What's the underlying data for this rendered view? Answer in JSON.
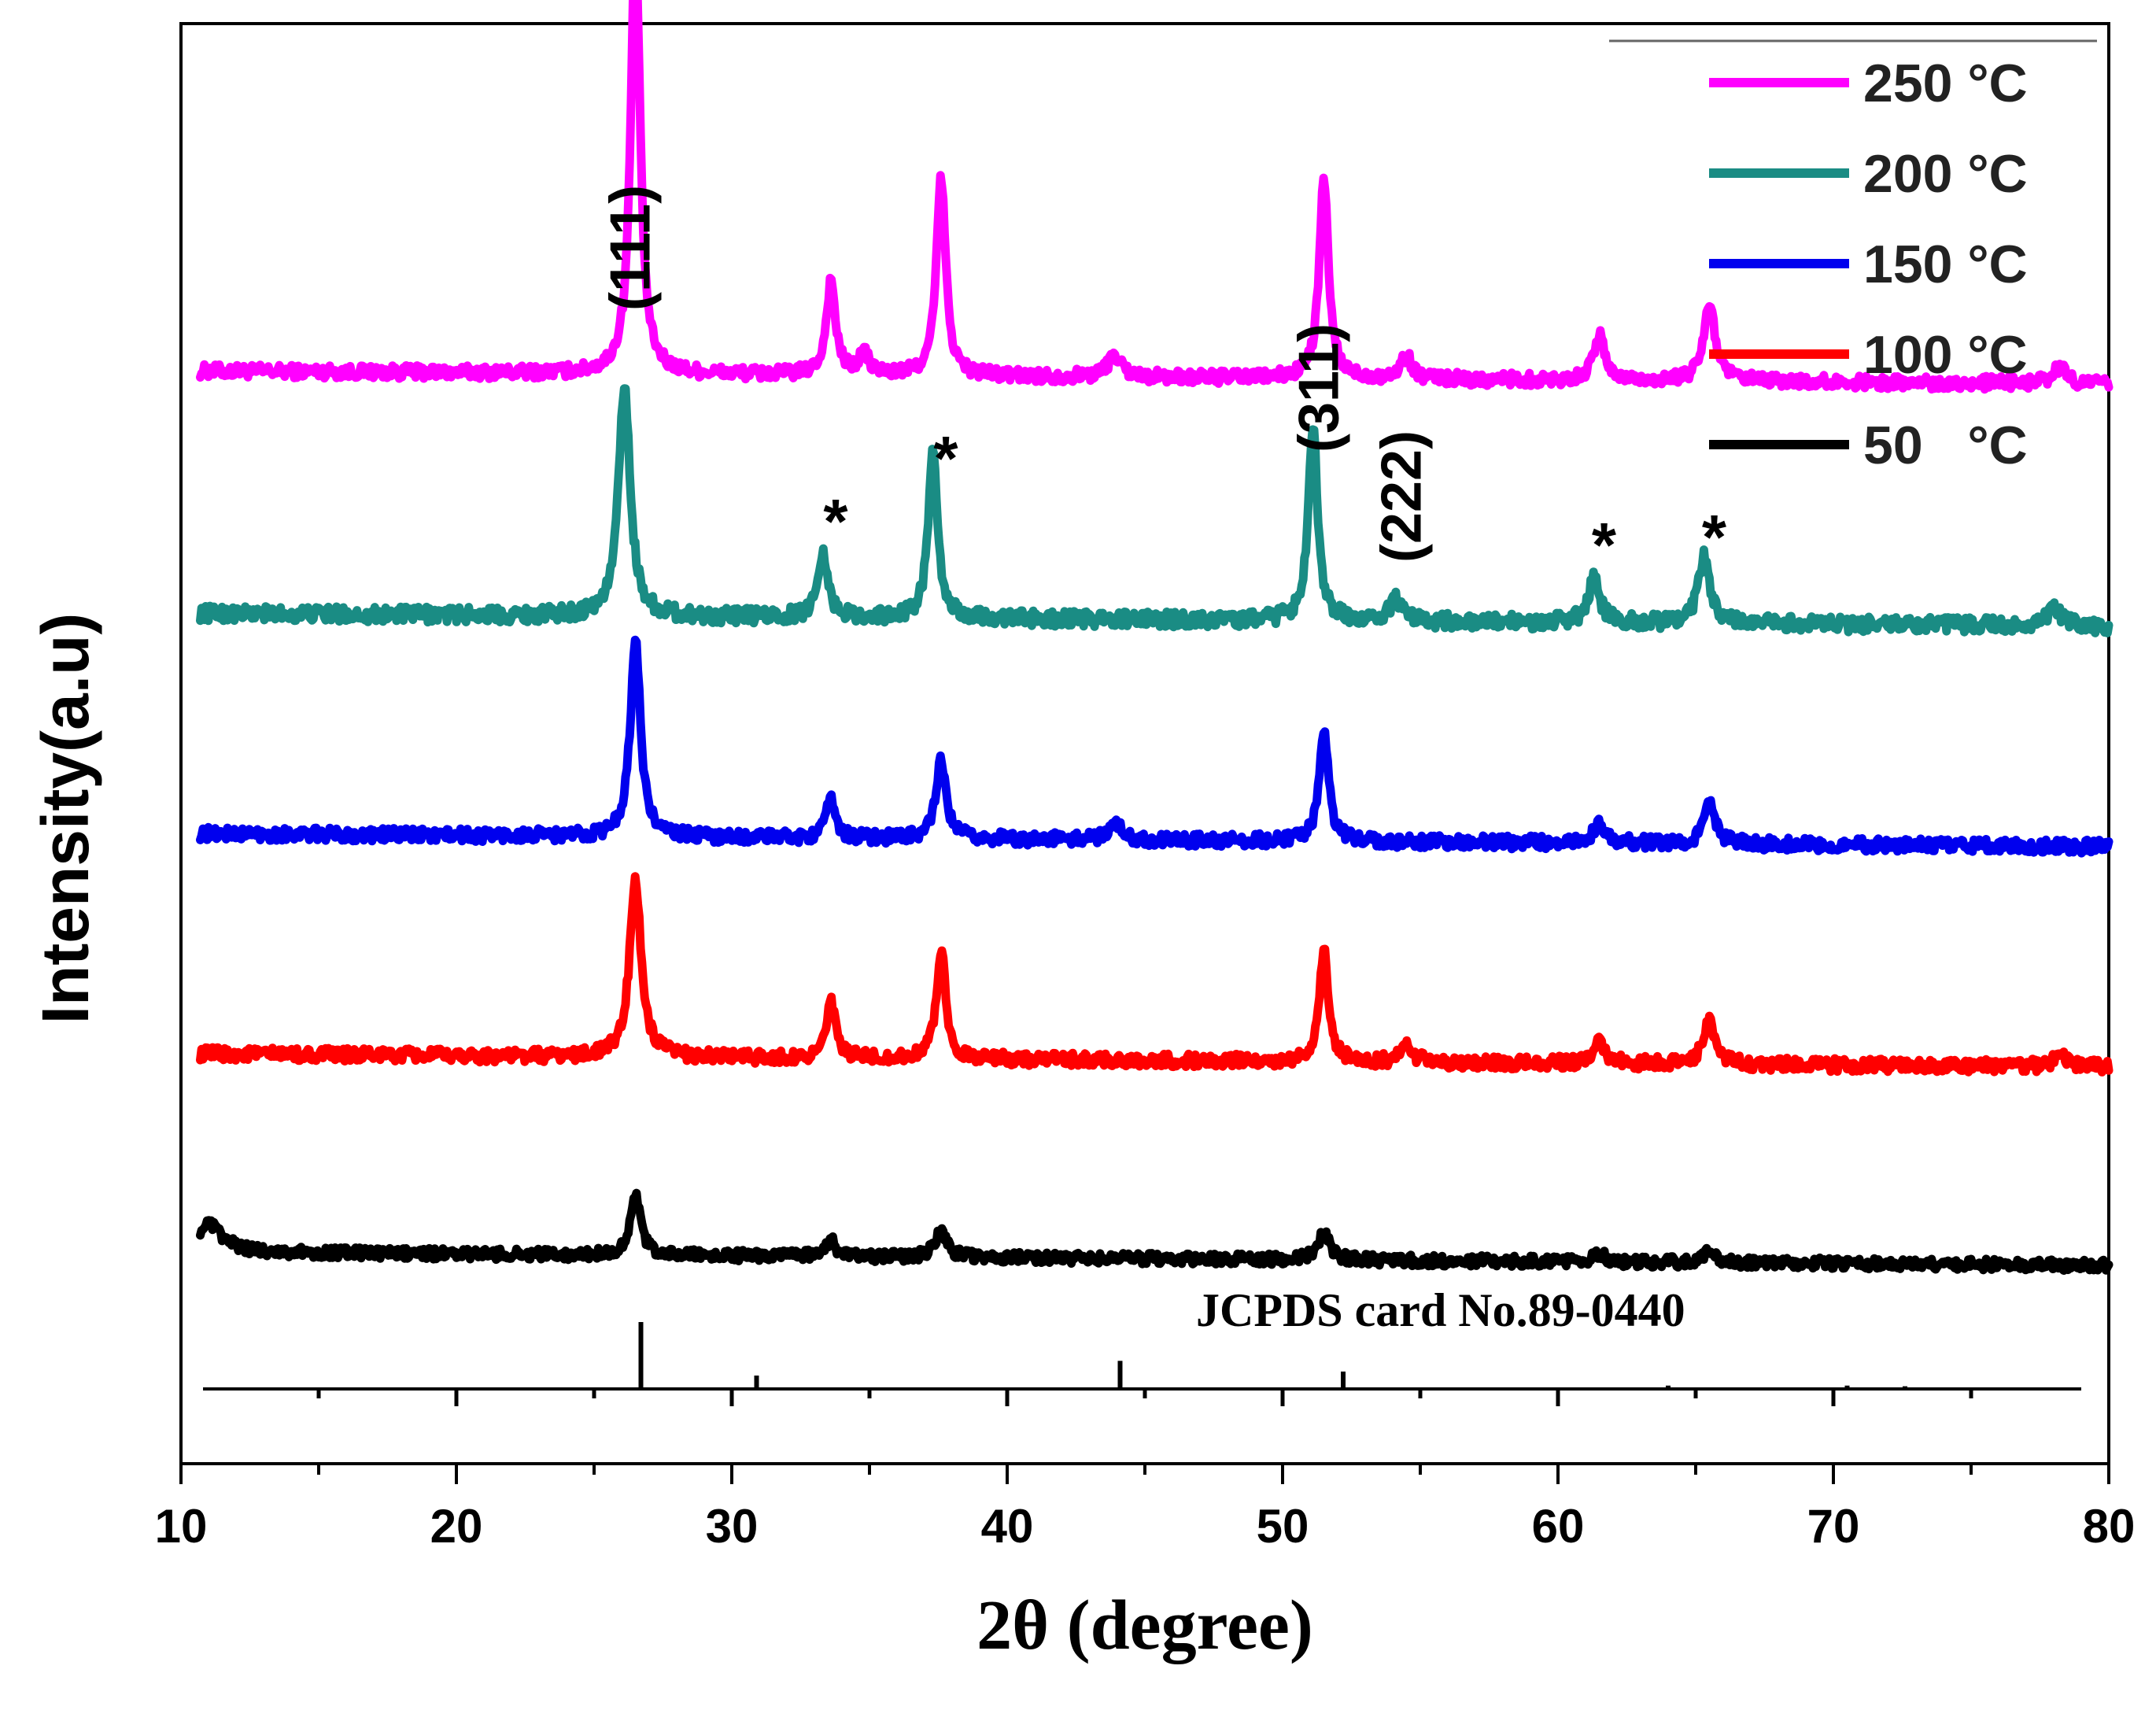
{
  "chart_data": {
    "type": "line",
    "xlabel": "2θ (degree)",
    "ylabel": "Intensity(a.u)",
    "xlim": [
      10,
      80
    ],
    "x_ticks": [
      10,
      20,
      30,
      40,
      50,
      60,
      70,
      80
    ],
    "legend_position": "top-right",
    "series": [
      {
        "name": "250 °C",
        "color": "#ff00ff",
        "baseline": 0.78,
        "noise": 0.006,
        "peaks": [
          {
            "x": 26.5,
            "h": 0.4,
            "w": 0.2
          },
          {
            "x": 33.6,
            "h": 0.085,
            "w": 0.2
          },
          {
            "x": 34.8,
            "h": 0.02,
            "w": 0.2
          },
          {
            "x": 37.6,
            "h": 0.18,
            "w": 0.2
          },
          {
            "x": 43.9,
            "h": 0.02,
            "w": 0.3
          },
          {
            "x": 51.5,
            "h": 0.18,
            "w": 0.2
          },
          {
            "x": 54.5,
            "h": 0.02,
            "w": 0.25
          },
          {
            "x": 61.5,
            "h": 0.04,
            "w": 0.25
          },
          {
            "x": 65.5,
            "h": 0.07,
            "w": 0.25
          },
          {
            "x": 78.2,
            "h": 0.015,
            "w": 0.3
          }
        ]
      },
      {
        "name": "200 °C",
        "color": "#1a8c84",
        "baseline": 0.56,
        "noise": 0.007,
        "peaks": [
          {
            "x": 26.1,
            "h": 0.21,
            "w": 0.25
          },
          {
            "x": 33.3,
            "h": 0.06,
            "w": 0.22
          },
          {
            "x": 37.3,
            "h": 0.15,
            "w": 0.2
          },
          {
            "x": 51.1,
            "h": 0.18,
            "w": 0.2
          },
          {
            "x": 54.1,
            "h": 0.02,
            "w": 0.25
          },
          {
            "x": 61.3,
            "h": 0.04,
            "w": 0.25
          },
          {
            "x": 65.3,
            "h": 0.06,
            "w": 0.25
          },
          {
            "x": 78.0,
            "h": 0.015,
            "w": 0.3
          }
        ]
      },
      {
        "name": "150 °C",
        "color": "#0000ee",
        "baseline": 0.36,
        "noise": 0.006,
        "peaks": [
          {
            "x": 26.5,
            "h": 0.18,
            "w": 0.22
          },
          {
            "x": 33.6,
            "h": 0.035,
            "w": 0.2
          },
          {
            "x": 37.6,
            "h": 0.07,
            "w": 0.22
          },
          {
            "x": 43.9,
            "h": 0.015,
            "w": 0.3
          },
          {
            "x": 51.5,
            "h": 0.1,
            "w": 0.2
          },
          {
            "x": 61.5,
            "h": 0.02,
            "w": 0.25
          },
          {
            "x": 65.5,
            "h": 0.035,
            "w": 0.25
          }
        ]
      },
      {
        "name": "100 °C",
        "color": "#ff0000",
        "baseline": 0.16,
        "noise": 0.006,
        "peaks": [
          {
            "x": 26.5,
            "h": 0.16,
            "w": 0.25
          },
          {
            "x": 33.6,
            "h": 0.05,
            "w": 0.2
          },
          {
            "x": 37.6,
            "h": 0.1,
            "w": 0.2
          },
          {
            "x": 51.5,
            "h": 0.1,
            "w": 0.2
          },
          {
            "x": 54.5,
            "h": 0.015,
            "w": 0.25
          },
          {
            "x": 61.5,
            "h": 0.02,
            "w": 0.25
          },
          {
            "x": 65.5,
            "h": 0.04,
            "w": 0.25
          },
          {
            "x": 78.2,
            "h": 0.01,
            "w": 0.3
          }
        ]
      },
      {
        "name": "50   °C",
        "color": "#000000",
        "baseline": -0.02,
        "noise": 0.005,
        "peaks": [
          {
            "x": 11.0,
            "h": 0.025,
            "w": 0.6
          },
          {
            "x": 26.5,
            "h": 0.055,
            "w": 0.22
          },
          {
            "x": 33.6,
            "h": 0.015,
            "w": 0.2
          },
          {
            "x": 37.6,
            "h": 0.025,
            "w": 0.25
          },
          {
            "x": 51.5,
            "h": 0.025,
            "w": 0.25
          },
          {
            "x": 61.5,
            "h": 0.008,
            "w": 0.25
          },
          {
            "x": 65.5,
            "h": 0.01,
            "w": 0.25
          }
        ]
      }
    ],
    "reference_pattern": {
      "label": "JCPDS card No.89-0440",
      "lines_up": [
        {
          "x": 26.7,
          "h": 1.0
        },
        {
          "x": 30.9,
          "h": 0.2
        },
        {
          "x": 44.1,
          "h": 0.42
        },
        {
          "x": 52.2,
          "h": 0.26
        },
        {
          "x": 64.0,
          "h": 0.05
        },
        {
          "x": 70.5,
          "h": 0.05
        },
        {
          "x": 72.6,
          "h": 0.04
        }
      ],
      "ticks_down_at": [
        15,
        20,
        25,
        30,
        35,
        40,
        45,
        50,
        55,
        60,
        65,
        70,
        75
      ]
    },
    "annotations": [
      {
        "text": "(111)",
        "x": 26.5,
        "kind": "hkl"
      },
      {
        "text": "(311)",
        "x": 51.5,
        "kind": "hkl"
      },
      {
        "text": "(222)",
        "x": 54.5,
        "kind": "hkl"
      },
      {
        "text": "*",
        "x": 33.6,
        "kind": "star"
      },
      {
        "text": "*",
        "x": 37.6,
        "kind": "star"
      },
      {
        "text": "*",
        "x": 61.5,
        "kind": "star"
      },
      {
        "text": "*",
        "x": 65.5,
        "kind": "star"
      }
    ]
  }
}
